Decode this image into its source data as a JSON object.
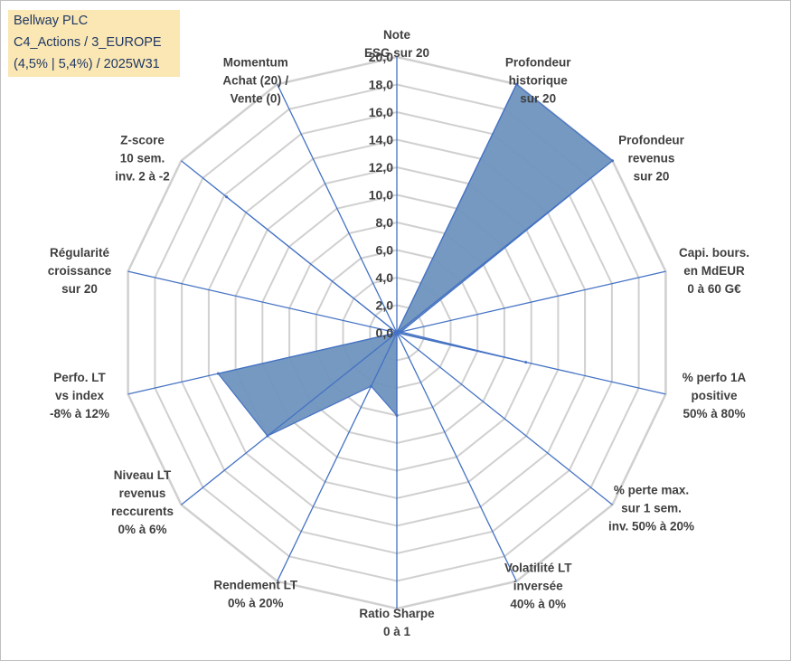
{
  "header": {
    "line1": "Bellway PLC",
    "line2": "C4_Actions / 3_EUROPE",
    "line3": "(4,5% | 5,4%) / 2025W31"
  },
  "chart_data": {
    "type": "radar",
    "range": [
      0,
      20
    ],
    "tick_step": 2,
    "tick_labels": [
      "0,0",
      "2,0",
      "4,0",
      "6,0",
      "8,0",
      "10,0",
      "12,0",
      "14,0",
      "16,0",
      "18,0",
      "20,0"
    ],
    "grid": true,
    "legend": "none",
    "fill_color": "#6f93be",
    "line_color": "#4472c4",
    "grid_color": "#d0d0d0",
    "categories": [
      [
        "Note",
        "ESG sur 20"
      ],
      [
        "Profondeur",
        "historique",
        "sur 20"
      ],
      [
        "Profondeur",
        "revenus",
        "sur 20"
      ],
      [
        "Capi. bours.",
        "en MdEUR",
        "0 à 60 G€"
      ],
      [
        "% perfo 1A",
        "positive",
        "50% à 80%"
      ],
      [
        "% perte max.",
        "sur 1 sem.",
        "inv. 50% à 20%"
      ],
      [
        "Volatilité LT",
        "inversée",
        "40% à 0%"
      ],
      [
        "Ratio Sharpe",
        "0 à 1"
      ],
      [
        "Rendement LT",
        "0% à 20%"
      ],
      [
        "Niveau LT",
        "revenus",
        "reccurents",
        "0% à 6%"
      ],
      [
        "Perfo. LT",
        "vs index",
        "-8% à 12%"
      ],
      [
        "Régularité",
        "croissance",
        "sur 20"
      ],
      [
        "Z-score",
        "10 sem.",
        "inv. 2 à -2"
      ],
      [
        "Momentum",
        "Achat (20) /",
        "Vente (0)"
      ]
    ],
    "values": [
      0,
      20,
      20,
      0.3,
      9.6,
      0,
      0,
      6,
      4.3,
      12,
      13.3,
      0,
      15.8,
      0
    ]
  }
}
